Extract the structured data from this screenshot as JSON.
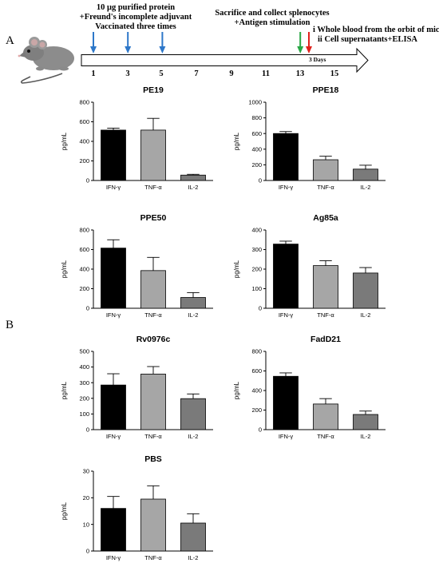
{
  "panel_labels": {
    "a": "A",
    "b": "B"
  },
  "timeline": {
    "left_text": [
      "10 μg purified protein",
      "+Freund's incomplete adjuvant",
      "Vaccinated three times"
    ],
    "middle_text": [
      "Sacrifice and collect splenocytes",
      "+Antigen stimulation"
    ],
    "right_text": [
      "i Whole blood from the orbit of mice",
      "ii Cell supernatants+ELISA"
    ],
    "gap_label": "3 Days",
    "days": [
      "1",
      "3",
      "5",
      "7",
      "9",
      "11",
      "13",
      "15"
    ],
    "vaccination_days": [
      1,
      3,
      5
    ],
    "sacrifice_day": 13,
    "sampling_day": 13.5,
    "colors": {
      "vaccination": "#2d77c9",
      "sacrifice": "#28a745",
      "sampling": "#e0211b"
    }
  },
  "bar_colors": [
    "#000000",
    "#a6a6a6",
    "#7a7a7a"
  ],
  "chart_data": [
    {
      "type": "bar",
      "title": "PE19",
      "ylabel": "pg/mL",
      "categories": [
        "IFN-γ",
        "TNF-α",
        "IL-2"
      ],
      "values": [
        515,
        515,
        55
      ],
      "errors": [
        20,
        120,
        8
      ],
      "ylim": [
        0,
        800
      ],
      "yticks": [
        "0",
        "200",
        "400",
        "600",
        "800"
      ]
    },
    {
      "type": "bar",
      "title": "PPE18",
      "ylabel": "pg/mL",
      "categories": [
        "IFN-γ",
        "TNF-α",
        "IL-2"
      ],
      "values": [
        600,
        265,
        145
      ],
      "errors": [
        25,
        45,
        50
      ],
      "ylim": [
        0,
        1000
      ],
      "yticks": [
        "0",
        "200",
        "400",
        "600",
        "800",
        "1000"
      ]
    },
    {
      "type": "bar",
      "title": "PPE50",
      "ylabel": "pg/mL",
      "categories": [
        "IFN-γ",
        "TNF-α",
        "IL-2"
      ],
      "values": [
        615,
        385,
        110
      ],
      "errors": [
        85,
        135,
        50
      ],
      "ylim": [
        0,
        800
      ],
      "yticks": [
        "0",
        "200",
        "400",
        "600",
        "800"
      ]
    },
    {
      "type": "bar",
      "title": "Ag85a",
      "ylabel": "pg/mL",
      "categories": [
        "IFN-γ",
        "TNF-α",
        "IL-2"
      ],
      "values": [
        328,
        218,
        180
      ],
      "errors": [
        15,
        25,
        28
      ],
      "ylim": [
        0,
        400
      ],
      "yticks": [
        "0",
        "100",
        "200",
        "300",
        "400"
      ]
    },
    {
      "type": "bar",
      "title": "Rv0976c",
      "ylabel": "pg/mL",
      "categories": [
        "IFN-γ",
        "TNF-α",
        "IL-2"
      ],
      "values": [
        285,
        355,
        198
      ],
      "errors": [
        72,
        48,
        30
      ],
      "ylim": [
        0,
        500
      ],
      "yticks": [
        "0",
        "100",
        "200",
        "300",
        "400",
        "500"
      ]
    },
    {
      "type": "bar",
      "title": "FadD21",
      "ylabel": "pg/mL",
      "categories": [
        "IFN-γ",
        "TNF-α",
        "IL-2"
      ],
      "values": [
        545,
        262,
        155
      ],
      "errors": [
        35,
        55,
        35
      ],
      "ylim": [
        0,
        800
      ],
      "yticks": [
        "0",
        "200",
        "400",
        "600",
        "800"
      ]
    },
    {
      "type": "bar",
      "title": "PBS",
      "ylabel": "pg/mL",
      "categories": [
        "IFN-γ",
        "TNF-α",
        "IL-2"
      ],
      "values": [
        16,
        19.5,
        10.5
      ],
      "errors": [
        4.5,
        5,
        3.5
      ],
      "ylim": [
        0,
        30
      ],
      "yticks": [
        "0",
        "10",
        "20",
        "30"
      ]
    }
  ]
}
